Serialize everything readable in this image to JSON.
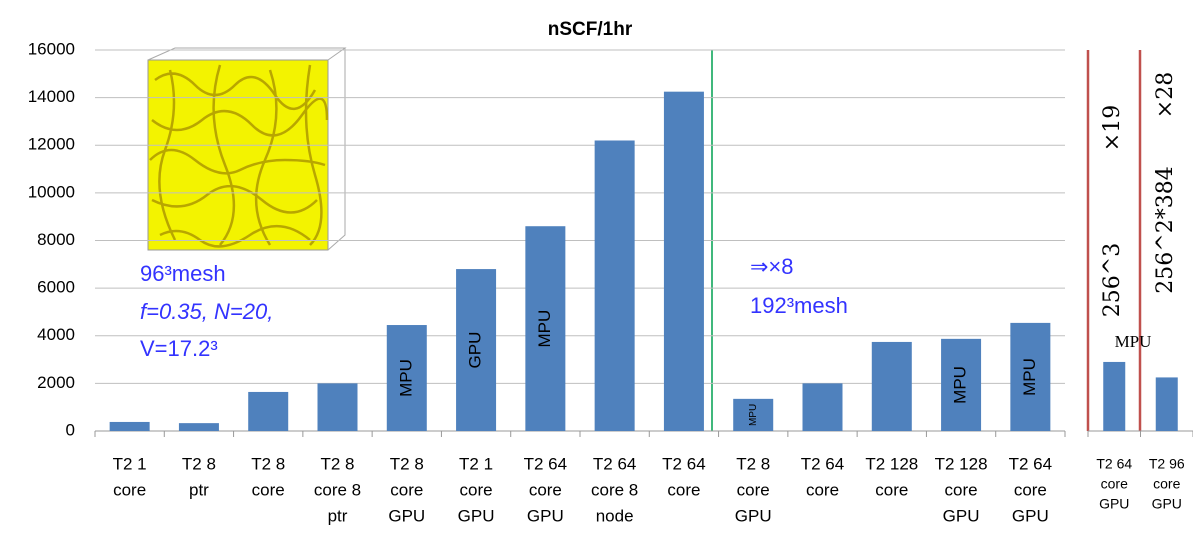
{
  "chart_data": [
    {
      "type": "bar",
      "title": "nSCF/1hr",
      "categories": [
        [
          "T2 1",
          "core"
        ],
        [
          "T2 8",
          "ptr"
        ],
        [
          "T2 8",
          "core"
        ],
        [
          "T2 8",
          "core 8",
          "ptr"
        ],
        [
          "T2 8",
          "core",
          "GPU"
        ],
        [
          "T2 1",
          "core",
          "GPU"
        ],
        [
          "T2 64",
          "core",
          "GPU"
        ],
        [
          "T2 64",
          "core 8",
          "node"
        ],
        [
          "T2 64",
          "core"
        ],
        [
          "T2 8",
          "core",
          "GPU"
        ],
        [
          "T2 64",
          "core"
        ],
        [
          "T2 128",
          "core"
        ],
        [
          "T2 128",
          "core",
          "GPU"
        ],
        [
          "T2 64",
          "core",
          "GPU"
        ]
      ],
      "values": [
        380,
        330,
        1640,
        2000,
        4450,
        6800,
        8600,
        12200,
        14250,
        1350,
        2000,
        3740,
        3870,
        4540
      ],
      "color": "#4f81bd",
      "bar_labels": [
        null,
        null,
        null,
        null,
        "MPU",
        "GPU",
        "MPU",
        null,
        null,
        "MPU",
        null,
        null,
        "MPU",
        "MPU"
      ],
      "bar_label_colors": [
        null,
        null,
        null,
        null,
        "#ffff00",
        "#c00000",
        "#ffff00",
        null,
        null,
        "#ffff00",
        null,
        null,
        "#ffff00",
        "#ffff00"
      ],
      "ylim": [
        0,
        16000
      ],
      "yticks": [
        0,
        2000,
        4000,
        6000,
        8000,
        10000,
        12000,
        14000,
        16000
      ],
      "grid": true,
      "annotations": [
        "96³mesh",
        "f=0.35, N=20,",
        "V=17.2³",
        "⇒×8",
        "192³mesh"
      ]
    },
    {
      "type": "bar",
      "categories": [
        [
          "T2 64",
          "core",
          "GPU"
        ],
        [
          "T2 96",
          "core",
          "GPU"
        ]
      ],
      "values": [
        2900,
        2250
      ],
      "color": "#4f81bd",
      "ylim": [
        0,
        16000
      ],
      "annotations": [
        "×19",
        "256^3",
        "×28",
        "256^2*384",
        "MPU"
      ]
    }
  ]
}
